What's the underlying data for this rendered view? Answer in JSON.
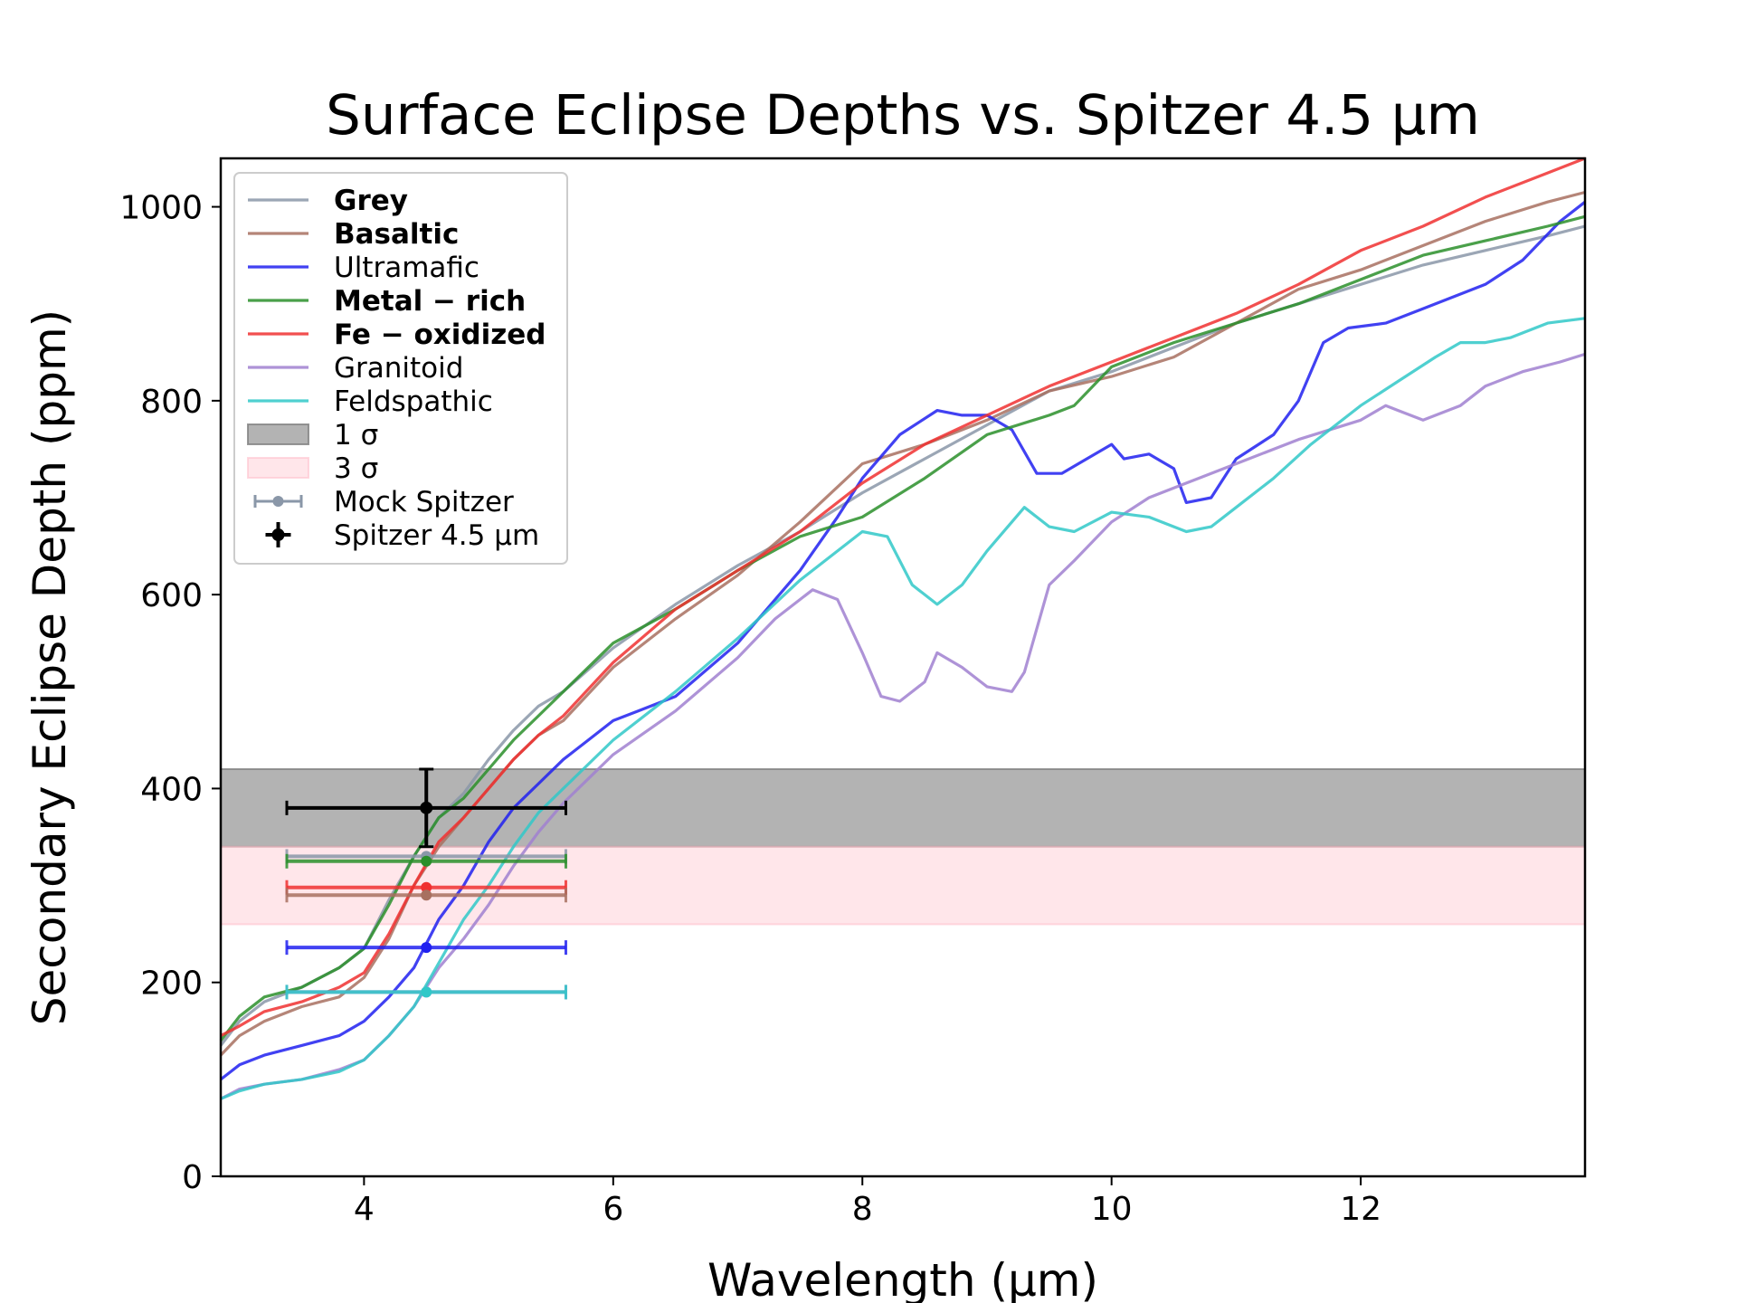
{
  "chart_data": {
    "type": "line",
    "title": "Surface Eclipse Depths vs. Spitzer 4.5 μm",
    "xlabel": "Wavelength (μm)",
    "ylabel": "Secondary Eclipse Depth (ppm)",
    "xlim": [
      2.85,
      13.8
    ],
    "ylim": [
      0,
      1050
    ],
    "xticks": [
      4,
      6,
      8,
      10,
      12
    ],
    "yticks": [
      0,
      200,
      400,
      600,
      800,
      1000
    ],
    "bands": [
      {
        "label": "1 σ",
        "y0": 340,
        "y1": 420,
        "color": "#808080",
        "opacity": 0.6
      },
      {
        "label": "3 σ",
        "y0": 260,
        "y1": 340,
        "color": "#ffc0cb",
        "opacity": 0.4
      }
    ],
    "series": [
      {
        "name": "Grey",
        "bold": true,
        "color": "#8a97a8",
        "points": [
          [
            2.85,
            135
          ],
          [
            3.0,
            160
          ],
          [
            3.2,
            180
          ],
          [
            3.5,
            195
          ],
          [
            3.8,
            215
          ],
          [
            4.0,
            235
          ],
          [
            4.2,
            285
          ],
          [
            4.4,
            330
          ],
          [
            4.6,
            370
          ],
          [
            4.8,
            395
          ],
          [
            5.0,
            430
          ],
          [
            5.2,
            460
          ],
          [
            5.4,
            485
          ],
          [
            5.6,
            500
          ],
          [
            6.0,
            545
          ],
          [
            6.5,
            590
          ],
          [
            7.0,
            630
          ],
          [
            7.5,
            665
          ],
          [
            8.0,
            705
          ],
          [
            8.5,
            740
          ],
          [
            9.0,
            775
          ],
          [
            9.5,
            810
          ],
          [
            10.0,
            830
          ],
          [
            10.5,
            855
          ],
          [
            11.0,
            880
          ],
          [
            11.5,
            900
          ],
          [
            12.0,
            920
          ],
          [
            12.5,
            940
          ],
          [
            13.0,
            955
          ],
          [
            13.5,
            970
          ],
          [
            13.8,
            980
          ]
        ]
      },
      {
        "name": "Basaltic",
        "bold": true,
        "color": "#a87060",
        "points": [
          [
            2.85,
            125
          ],
          [
            3.0,
            145
          ],
          [
            3.2,
            160
          ],
          [
            3.5,
            175
          ],
          [
            3.8,
            185
          ],
          [
            4.0,
            205
          ],
          [
            4.2,
            245
          ],
          [
            4.4,
            300
          ],
          [
            4.6,
            340
          ],
          [
            4.8,
            370
          ],
          [
            5.0,
            400
          ],
          [
            5.2,
            430
          ],
          [
            5.4,
            455
          ],
          [
            5.6,
            470
          ],
          [
            6.0,
            525
          ],
          [
            6.5,
            575
          ],
          [
            7.0,
            620
          ],
          [
            7.5,
            675
          ],
          [
            8.0,
            735
          ],
          [
            8.5,
            755
          ],
          [
            9.0,
            780
          ],
          [
            9.5,
            810
          ],
          [
            10.0,
            825
          ],
          [
            10.5,
            845
          ],
          [
            11.0,
            880
          ],
          [
            11.5,
            915
          ],
          [
            12.0,
            935
          ],
          [
            12.5,
            960
          ],
          [
            13.0,
            985
          ],
          [
            13.5,
            1005
          ],
          [
            13.8,
            1015
          ]
        ]
      },
      {
        "name": "Ultramafic",
        "bold": false,
        "color": "#2020f0",
        "points": [
          [
            2.85,
            100
          ],
          [
            3.0,
            115
          ],
          [
            3.2,
            125
          ],
          [
            3.5,
            135
          ],
          [
            3.8,
            145
          ],
          [
            4.0,
            160
          ],
          [
            4.2,
            185
          ],
          [
            4.4,
            215
          ],
          [
            4.6,
            265
          ],
          [
            4.8,
            300
          ],
          [
            5.0,
            345
          ],
          [
            5.2,
            380
          ],
          [
            5.4,
            405
          ],
          [
            5.6,
            430
          ],
          [
            5.8,
            450
          ],
          [
            6.0,
            470
          ],
          [
            6.2,
            480
          ],
          [
            6.5,
            495
          ],
          [
            7.0,
            550
          ],
          [
            7.5,
            625
          ],
          [
            7.8,
            680
          ],
          [
            8.0,
            720
          ],
          [
            8.3,
            765
          ],
          [
            8.6,
            790
          ],
          [
            8.8,
            785
          ],
          [
            9.0,
            785
          ],
          [
            9.2,
            770
          ],
          [
            9.4,
            725
          ],
          [
            9.6,
            725
          ],
          [
            10.0,
            755
          ],
          [
            10.1,
            740
          ],
          [
            10.3,
            745
          ],
          [
            10.5,
            730
          ],
          [
            10.6,
            695
          ],
          [
            10.8,
            700
          ],
          [
            11.0,
            740
          ],
          [
            11.3,
            765
          ],
          [
            11.5,
            800
          ],
          [
            11.7,
            860
          ],
          [
            11.9,
            875
          ],
          [
            12.2,
            880
          ],
          [
            12.5,
            895
          ],
          [
            13.0,
            920
          ],
          [
            13.3,
            945
          ],
          [
            13.6,
            985
          ],
          [
            13.8,
            1005
          ]
        ]
      },
      {
        "name": "Metal − rich",
        "bold": true,
        "color": "#2a8f2a",
        "points": [
          [
            2.85,
            140
          ],
          [
            3.0,
            165
          ],
          [
            3.2,
            185
          ],
          [
            3.5,
            195
          ],
          [
            3.8,
            215
          ],
          [
            4.0,
            235
          ],
          [
            4.2,
            280
          ],
          [
            4.4,
            330
          ],
          [
            4.6,
            370
          ],
          [
            4.8,
            390
          ],
          [
            5.0,
            420
          ],
          [
            5.2,
            450
          ],
          [
            5.4,
            475
          ],
          [
            5.6,
            500
          ],
          [
            6.0,
            550
          ],
          [
            6.5,
            585
          ],
          [
            7.0,
            625
          ],
          [
            7.5,
            660
          ],
          [
            8.0,
            680
          ],
          [
            8.5,
            720
          ],
          [
            9.0,
            765
          ],
          [
            9.5,
            785
          ],
          [
            9.7,
            795
          ],
          [
            10.0,
            835
          ],
          [
            10.5,
            860
          ],
          [
            11.0,
            880
          ],
          [
            11.5,
            900
          ],
          [
            12.0,
            925
          ],
          [
            12.5,
            950
          ],
          [
            13.0,
            965
          ],
          [
            13.5,
            980
          ],
          [
            13.8,
            990
          ]
        ]
      },
      {
        "name": "Fe − oxidized",
        "bold": true,
        "color": "#f03030",
        "points": [
          [
            2.85,
            145
          ],
          [
            3.0,
            155
          ],
          [
            3.2,
            170
          ],
          [
            3.5,
            180
          ],
          [
            3.8,
            195
          ],
          [
            4.0,
            210
          ],
          [
            4.2,
            250
          ],
          [
            4.4,
            300
          ],
          [
            4.6,
            345
          ],
          [
            4.8,
            370
          ],
          [
            5.0,
            400
          ],
          [
            5.2,
            430
          ],
          [
            5.4,
            455
          ],
          [
            5.6,
            475
          ],
          [
            6.0,
            530
          ],
          [
            6.5,
            585
          ],
          [
            7.0,
            625
          ],
          [
            7.5,
            665
          ],
          [
            8.0,
            715
          ],
          [
            8.5,
            755
          ],
          [
            9.0,
            785
          ],
          [
            9.5,
            815
          ],
          [
            10.0,
            840
          ],
          [
            10.5,
            865
          ],
          [
            11.0,
            890
          ],
          [
            11.5,
            920
          ],
          [
            12.0,
            955
          ],
          [
            12.5,
            980
          ],
          [
            13.0,
            1010
          ],
          [
            13.5,
            1035
          ],
          [
            13.8,
            1050
          ]
        ]
      },
      {
        "name": "Granitoid",
        "bold": false,
        "color": "#a080d0",
        "points": [
          [
            2.85,
            80
          ],
          [
            3.0,
            90
          ],
          [
            3.2,
            95
          ],
          [
            3.5,
            100
          ],
          [
            3.8,
            110
          ],
          [
            4.0,
            120
          ],
          [
            4.2,
            145
          ],
          [
            4.4,
            175
          ],
          [
            4.6,
            215
          ],
          [
            4.8,
            245
          ],
          [
            5.0,
            280
          ],
          [
            5.2,
            320
          ],
          [
            5.4,
            355
          ],
          [
            5.6,
            385
          ],
          [
            6.0,
            435
          ],
          [
            6.5,
            480
          ],
          [
            7.0,
            535
          ],
          [
            7.3,
            575
          ],
          [
            7.6,
            605
          ],
          [
            7.8,
            595
          ],
          [
            8.0,
            540
          ],
          [
            8.15,
            495
          ],
          [
            8.3,
            490
          ],
          [
            8.5,
            510
          ],
          [
            8.6,
            540
          ],
          [
            8.8,
            525
          ],
          [
            9.0,
            505
          ],
          [
            9.2,
            500
          ],
          [
            9.3,
            520
          ],
          [
            9.5,
            610
          ],
          [
            9.7,
            635
          ],
          [
            10.0,
            675
          ],
          [
            10.3,
            700
          ],
          [
            10.6,
            715
          ],
          [
            11.0,
            735
          ],
          [
            11.5,
            760
          ],
          [
            12.0,
            780
          ],
          [
            12.2,
            795
          ],
          [
            12.3,
            790
          ],
          [
            12.5,
            780
          ],
          [
            12.8,
            795
          ],
          [
            13.0,
            815
          ],
          [
            13.3,
            830
          ],
          [
            13.6,
            840
          ],
          [
            13.8,
            848
          ]
        ]
      },
      {
        "name": "Feldspathic",
        "bold": false,
        "color": "#30c8c8",
        "points": [
          [
            2.85,
            80
          ],
          [
            3.0,
            88
          ],
          [
            3.2,
            95
          ],
          [
            3.5,
            100
          ],
          [
            3.8,
            108
          ],
          [
            4.0,
            120
          ],
          [
            4.2,
            145
          ],
          [
            4.4,
            175
          ],
          [
            4.6,
            220
          ],
          [
            4.8,
            265
          ],
          [
            5.0,
            300
          ],
          [
            5.2,
            340
          ],
          [
            5.4,
            375
          ],
          [
            5.6,
            400
          ],
          [
            6.0,
            450
          ],
          [
            6.5,
            500
          ],
          [
            7.0,
            555
          ],
          [
            7.5,
            615
          ],
          [
            8.0,
            665
          ],
          [
            8.2,
            660
          ],
          [
            8.4,
            610
          ],
          [
            8.6,
            590
          ],
          [
            8.8,
            610
          ],
          [
            9.0,
            645
          ],
          [
            9.3,
            690
          ],
          [
            9.5,
            670
          ],
          [
            9.7,
            665
          ],
          [
            10.0,
            685
          ],
          [
            10.3,
            680
          ],
          [
            10.6,
            665
          ],
          [
            10.8,
            670
          ],
          [
            11.0,
            690
          ],
          [
            11.3,
            720
          ],
          [
            11.6,
            755
          ],
          [
            12.0,
            795
          ],
          [
            12.3,
            820
          ],
          [
            12.6,
            845
          ],
          [
            12.8,
            860
          ],
          [
            13.0,
            860
          ],
          [
            13.2,
            865
          ],
          [
            13.5,
            880
          ],
          [
            13.8,
            885
          ]
        ]
      }
    ],
    "mock_spitzer": {
      "label": "Mock Spitzer",
      "x": 4.5,
      "xerr": 1.12,
      "points": [
        {
          "model": "Grey",
          "y": 330,
          "color": "#8a97a8"
        },
        {
          "model": "Metal − rich",
          "y": 325,
          "color": "#2a8f2a"
        },
        {
          "model": "Fe − oxidized",
          "y": 298,
          "color": "#f03030"
        },
        {
          "model": "Basaltic",
          "y": 290,
          "color": "#a87060"
        },
        {
          "model": "Ultramafic",
          "y": 236,
          "color": "#2020f0"
        },
        {
          "model": "Granitoid",
          "y": 190,
          "color": "#a080d0"
        },
        {
          "model": "Feldspathic",
          "y": 190,
          "color": "#30c8c8"
        }
      ]
    },
    "observed": {
      "label": "Spitzer 4.5 μm",
      "x": 4.5,
      "xerr": 1.12,
      "y": 380,
      "yerr": 40,
      "color": "#000000"
    },
    "legend_position": "upper-left"
  }
}
